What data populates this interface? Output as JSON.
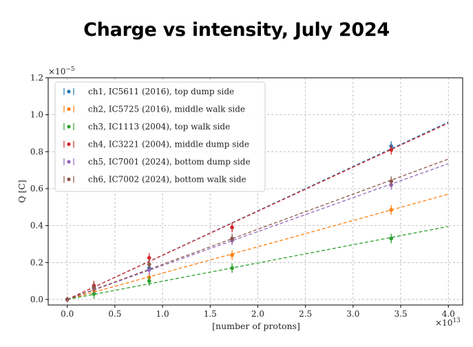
{
  "page": {
    "title": "Charge vs intensity, July 2024"
  },
  "chart_data": {
    "type": "scatter",
    "xlabel": "[number of protons]",
    "ylabel": "Q [C]",
    "x_multiplier_label": "×10",
    "x_multiplier_exp": "13",
    "y_multiplier_label": "×10",
    "y_multiplier_exp": "−5",
    "xlim": [
      -0.2,
      4.15
    ],
    "ylim": [
      -0.03,
      1.2
    ],
    "x_ticks": [
      0.0,
      0.5,
      1.0,
      1.5,
      2.0,
      2.5,
      3.0,
      3.5,
      4.0
    ],
    "x_tick_labels": [
      "0.0",
      "0.5",
      "1.0",
      "1.5",
      "2.0",
      "2.5",
      "3.0",
      "3.5",
      "4.0"
    ],
    "y_ticks": [
      0.0,
      0.2,
      0.4,
      0.6,
      0.8,
      1.0,
      1.2
    ],
    "y_tick_labels": [
      "0.0",
      "0.2",
      "0.4",
      "0.6",
      "0.8",
      "1.0",
      "1.2"
    ],
    "grid": true,
    "legend_position": "top-left",
    "fit_x_range": [
      0.0,
      4.0
    ],
    "series": [
      {
        "name": "ch1, IC5611 (2016), top dump side",
        "color": "#1f77b4",
        "x": [
          0.0,
          0.28,
          0.86,
          1.73,
          3.4
        ],
        "y": [
          0.0,
          0.07,
          0.17,
          0.39,
          0.83
        ],
        "fit_y_end": 0.96
      },
      {
        "name": "ch2, IC5725 (2016), middle walk side",
        "color": "#ff7f0e",
        "x": [
          0.0,
          0.28,
          0.86,
          1.73,
          3.4
        ],
        "y": [
          0.0,
          0.05,
          0.12,
          0.24,
          0.485
        ],
        "fit_y_end": 0.57
      },
      {
        "name": "ch3, IC1113 (2004), top walk side",
        "color": "#2ca02c",
        "x": [
          0.0,
          0.28,
          0.86,
          1.73,
          3.4
        ],
        "y": [
          0.0,
          0.03,
          0.1,
          0.17,
          0.33
        ],
        "fit_y_end": 0.395
      },
      {
        "name": "ch4, IC3221 (2004), middle dump side",
        "color": "#d62728",
        "x": [
          0.0,
          0.28,
          0.86,
          1.73,
          3.4
        ],
        "y": [
          0.0,
          0.075,
          0.225,
          0.39,
          0.81
        ],
        "fit_y_end": 0.955
      },
      {
        "name": "ch5, IC7001 (2024), bottom dump side",
        "color": "#9467bd",
        "x": [
          0.0,
          0.28,
          0.86,
          1.73,
          3.4
        ],
        "y": [
          0.0,
          0.06,
          0.16,
          0.32,
          0.62
        ],
        "fit_y_end": 0.735
      },
      {
        "name": "ch6, IC7002 (2024), bottom walk side",
        "color": "#8c564b",
        "x": [
          0.0,
          0.28,
          0.86,
          1.73,
          3.4
        ],
        "y": [
          0.0,
          0.065,
          0.19,
          0.33,
          0.64
        ],
        "fit_y_end": 0.76
      }
    ]
  }
}
